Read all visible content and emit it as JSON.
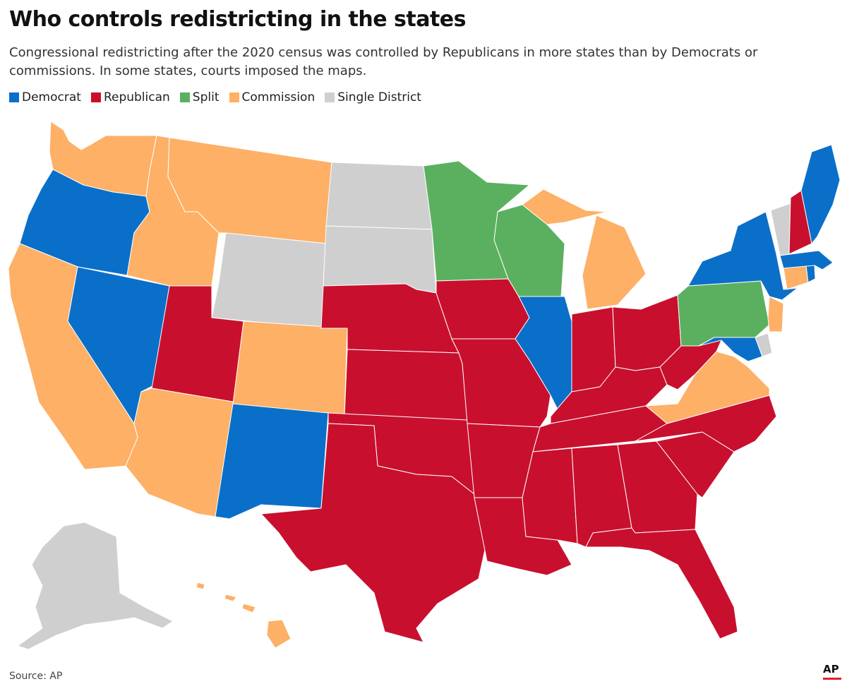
{
  "title": "Who controls redistricting in the states",
  "subtitle": "Congressional redistricting after the 2020 census was controlled by Republicans in more states than by Democrats or commissions. In some states, courts imposed the maps.",
  "legend": [
    {
      "key": "democrat",
      "label": "Democrat",
      "color": "#0a6fc9"
    },
    {
      "key": "republican",
      "label": "Republican",
      "color": "#c8102e"
    },
    {
      "key": "split",
      "label": "Split",
      "color": "#5bb05f"
    },
    {
      "key": "commission",
      "label": "Commission",
      "color": "#fdb066"
    },
    {
      "key": "single",
      "label": "Single District",
      "color": "#cfcfcf"
    }
  ],
  "source": "Source: AP",
  "logo_text": "AP",
  "states": {
    "WA": "commission",
    "OR": "democrat",
    "CA": "commission",
    "NV": "democrat",
    "ID": "commission",
    "MT": "commission",
    "WY": "single",
    "UT": "republican",
    "AZ": "commission",
    "CO": "commission",
    "NM": "democrat",
    "ND": "single",
    "SD": "single",
    "NE": "republican",
    "KS": "republican",
    "OK": "republican",
    "TX": "republican",
    "MN": "split",
    "IA": "republican",
    "MO": "republican",
    "AR": "republican",
    "LA": "republican",
    "WI": "split",
    "IL": "democrat",
    "MI": "commission",
    "IN": "republican",
    "OH": "republican",
    "KY": "republican",
    "TN": "republican",
    "MS": "republican",
    "AL": "republican",
    "GA": "republican",
    "FL": "republican",
    "SC": "republican",
    "NC": "republican",
    "VA": "commission",
    "WV": "republican",
    "MD": "democrat",
    "DE": "single",
    "PA": "split",
    "NJ": "commission",
    "NY": "democrat",
    "CT": "commission",
    "RI": "democrat",
    "MA": "democrat",
    "VT": "single",
    "NH": "republican",
    "ME": "democrat",
    "AK": "single",
    "HI": "commission"
  }
}
